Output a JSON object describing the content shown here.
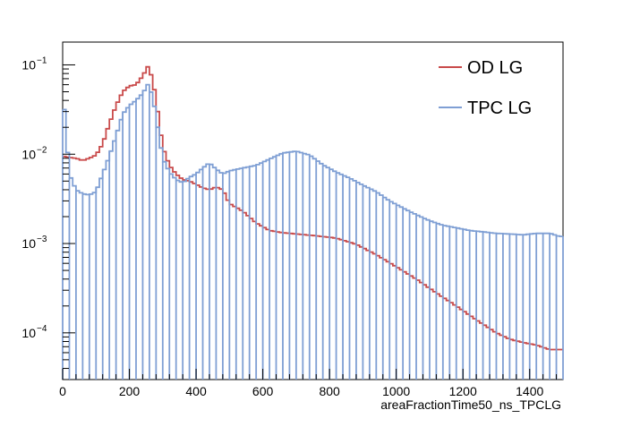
{
  "chart_data": {
    "type": "histogram",
    "title": "",
    "xlabel": "areaFractionTime50_ns_TPCLG",
    "ylabel": "",
    "xlim": [
      0,
      1500
    ],
    "ylim": [
      3e-05,
      0.18
    ],
    "yscale": "log",
    "bin_width": 10,
    "x_ticks": [
      0,
      200,
      400,
      600,
      800,
      1000,
      1200,
      1400
    ],
    "x_tick_labels": [
      "0",
      "200",
      "400",
      "600",
      "800",
      "1000",
      "1200",
      "1400"
    ],
    "y_ticks": [
      0.0001,
      0.001,
      0.01,
      0.1
    ],
    "y_tick_labels": [
      {
        "base": "10",
        "exp": "−4"
      },
      {
        "base": "10",
        "exp": "−3"
      },
      {
        "base": "10",
        "exp": "−2"
      },
      {
        "base": "10",
        "exp": "−1"
      }
    ],
    "legend_position": "top-right",
    "series": [
      {
        "name": "OD LG",
        "color": "#c94a4a",
        "points": [
          [
            0,
            0.0095
          ],
          [
            20,
            0.0092
          ],
          [
            40,
            0.009
          ],
          [
            60,
            0.0085
          ],
          [
            80,
            0.009
          ],
          [
            100,
            0.0098
          ],
          [
            120,
            0.013
          ],
          [
            140,
            0.022
          ],
          [
            160,
            0.035
          ],
          [
            180,
            0.05
          ],
          [
            200,
            0.058
          ],
          [
            220,
            0.06
          ],
          [
            240,
            0.075
          ],
          [
            255,
            0.095
          ],
          [
            270,
            0.07
          ],
          [
            285,
            0.03
          ],
          [
            300,
            0.012
          ],
          [
            320,
            0.0075
          ],
          [
            340,
            0.006
          ],
          [
            360,
            0.0052
          ],
          [
            380,
            0.005
          ],
          [
            400,
            0.0046
          ],
          [
            420,
            0.0042
          ],
          [
            440,
            0.004
          ],
          [
            460,
            0.0043
          ],
          [
            480,
            0.004
          ],
          [
            500,
            0.0028
          ],
          [
            540,
            0.0023
          ],
          [
            580,
            0.0017
          ],
          [
            620,
            0.0014
          ],
          [
            660,
            0.00132
          ],
          [
            700,
            0.00128
          ],
          [
            760,
            0.00122
          ],
          [
            820,
            0.00115
          ],
          [
            880,
            0.00098
          ],
          [
            940,
            0.00075
          ],
          [
            1000,
            0.00055
          ],
          [
            1060,
            0.0004
          ],
          [
            1120,
            0.00028
          ],
          [
            1180,
            0.0002
          ],
          [
            1240,
            0.00014
          ],
          [
            1300,
            0.0001
          ],
          [
            1340,
            8.5e-05
          ],
          [
            1380,
            7.8e-05
          ],
          [
            1420,
            7.3e-05
          ],
          [
            1460,
            6.5e-05
          ],
          [
            1490,
            6.5e-05
          ]
        ]
      },
      {
        "name": "TPC LG",
        "color": "#7f9fd4",
        "points": [
          [
            0,
            0.055
          ],
          [
            20,
            0.006
          ],
          [
            40,
            0.004
          ],
          [
            60,
            0.0036
          ],
          [
            80,
            0.0035
          ],
          [
            100,
            0.0038
          ],
          [
            120,
            0.006
          ],
          [
            140,
            0.0095
          ],
          [
            160,
            0.016
          ],
          [
            180,
            0.028
          ],
          [
            200,
            0.035
          ],
          [
            220,
            0.04
          ],
          [
            240,
            0.048
          ],
          [
            255,
            0.06
          ],
          [
            270,
            0.045
          ],
          [
            285,
            0.02
          ],
          [
            300,
            0.009
          ],
          [
            320,
            0.0063
          ],
          [
            340,
            0.0052
          ],
          [
            360,
            0.0048
          ],
          [
            380,
            0.0055
          ],
          [
            400,
            0.006
          ],
          [
            420,
            0.007
          ],
          [
            440,
            0.008
          ],
          [
            460,
            0.0068
          ],
          [
            480,
            0.006
          ],
          [
            500,
            0.0065
          ],
          [
            540,
            0.007
          ],
          [
            580,
            0.0075
          ],
          [
            620,
            0.0088
          ],
          [
            660,
            0.0103
          ],
          [
            700,
            0.0108
          ],
          [
            740,
            0.0098
          ],
          [
            780,
            0.0076
          ],
          [
            820,
            0.0063
          ],
          [
            860,
            0.0054
          ],
          [
            900,
            0.0045
          ],
          [
            940,
            0.0038
          ],
          [
            980,
            0.003
          ],
          [
            1020,
            0.0025
          ],
          [
            1060,
            0.0021
          ],
          [
            1100,
            0.0018
          ],
          [
            1140,
            0.0016
          ],
          [
            1180,
            0.0015
          ],
          [
            1220,
            0.0014
          ],
          [
            1260,
            0.00135
          ],
          [
            1300,
            0.0013
          ],
          [
            1340,
            0.00128
          ],
          [
            1380,
            0.00125
          ],
          [
            1420,
            0.0013
          ],
          [
            1460,
            0.0013
          ],
          [
            1490,
            0.0012
          ]
        ]
      }
    ]
  }
}
